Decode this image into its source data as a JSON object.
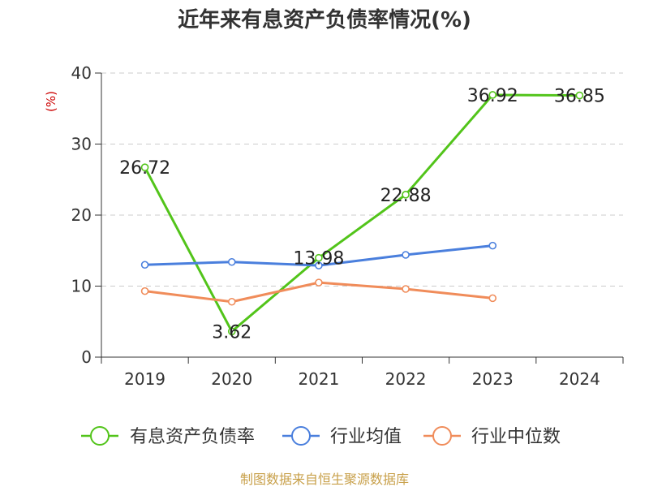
{
  "chart_data": {
    "type": "line",
    "title": "近年来有息资产负债率情况(%)",
    "ylabel": "(%)",
    "categories": [
      "2019",
      "2020",
      "2021",
      "2022",
      "2023",
      "2024"
    ],
    "ylim": [
      0,
      40
    ],
    "yticks": [
      0,
      10,
      20,
      30,
      40
    ],
    "grid": true,
    "legend_position": "bottom",
    "series": [
      {
        "name": "有息资产负债率",
        "color": "#52c41a",
        "values": [
          26.72,
          3.62,
          13.98,
          22.88,
          36.92,
          36.85
        ],
        "labels": [
          "26.72",
          "3.62",
          "13.98",
          "22.88",
          "36.92",
          "36.85"
        ]
      },
      {
        "name": "行业均值",
        "color": "#4a7fdd",
        "values": [
          13.0,
          13.4,
          12.9,
          14.4,
          15.7,
          null
        ]
      },
      {
        "name": "行业中位数",
        "color": "#f08c5a",
        "values": [
          9.3,
          7.8,
          10.5,
          9.6,
          8.3,
          null
        ]
      }
    ]
  },
  "source_text": "制图数据来自恒生聚源数据库",
  "colors": {
    "axis": "#333333",
    "grid": "#cccccc",
    "ylabel": "#cc0000",
    "source": "#c8a04a"
  }
}
